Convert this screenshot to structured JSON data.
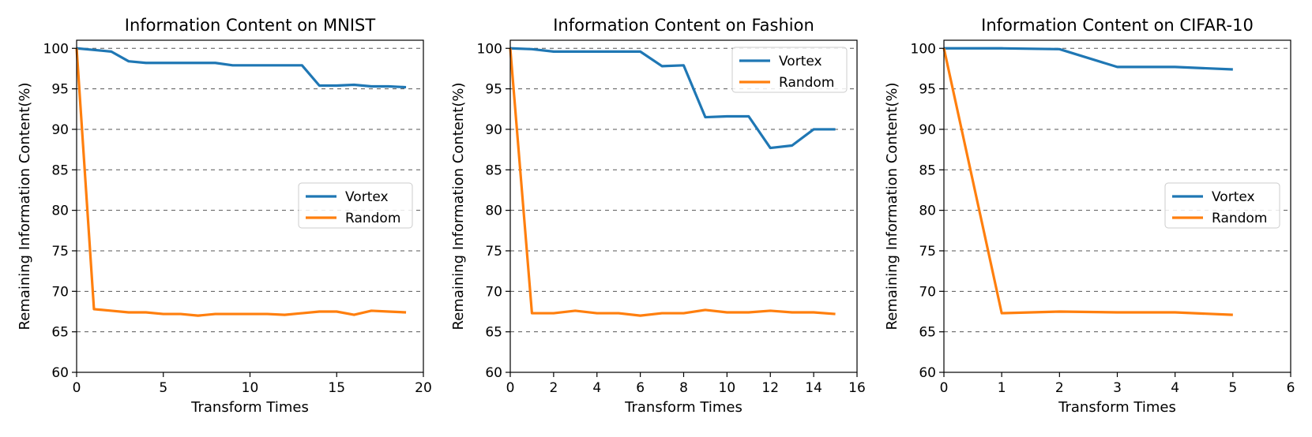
{
  "chart_data": [
    {
      "type": "line",
      "title": "Information Content on MNIST",
      "xlabel": "Transform Times",
      "ylabel": "Remaining Information Content(%)",
      "xlim": [
        0,
        20
      ],
      "ylim": [
        60,
        101
      ],
      "xticks": [
        0,
        5,
        10,
        15,
        20
      ],
      "xtick_labels": [
        "0",
        "5",
        "10",
        "15",
        "20"
      ],
      "yticks": [
        60,
        65,
        70,
        75,
        80,
        85,
        90,
        95,
        100
      ],
      "ytick_labels": [
        "60",
        "65",
        "70",
        "75",
        "80",
        "85",
        "90",
        "95",
        "100"
      ],
      "grid": "horizontal-dashed",
      "legend_position": "center-right",
      "series": [
        {
          "name": "Vortex",
          "color": "#1f77b4",
          "x": [
            0,
            1,
            2,
            3,
            4,
            5,
            6,
            7,
            8,
            9,
            10,
            11,
            12,
            13,
            14,
            15,
            16,
            17,
            18,
            19
          ],
          "y": [
            100,
            99.8,
            99.6,
            98.4,
            98.2,
            98.2,
            98.2,
            98.2,
            98.2,
            97.9,
            97.9,
            97.9,
            97.9,
            97.9,
            95.4,
            95.4,
            95.5,
            95.3,
            95.3,
            95.2
          ]
        },
        {
          "name": "Random",
          "color": "#ff7f0e",
          "x": [
            0,
            1,
            2,
            3,
            4,
            5,
            6,
            7,
            8,
            9,
            10,
            11,
            12,
            13,
            14,
            15,
            16,
            17,
            18,
            19
          ],
          "y": [
            100,
            67.8,
            67.6,
            67.4,
            67.4,
            67.2,
            67.2,
            67.0,
            67.2,
            67.2,
            67.2,
            67.2,
            67.1,
            67.3,
            67.5,
            67.5,
            67.1,
            67.6,
            67.5,
            67.4
          ]
        }
      ]
    },
    {
      "type": "line",
      "title": "Information Content on Fashion",
      "xlabel": "Transform Times",
      "ylabel": "Remaining Information Content(%)",
      "xlim": [
        0,
        16
      ],
      "ylim": [
        60,
        101
      ],
      "xticks": [
        0,
        2,
        4,
        6,
        8,
        10,
        12,
        14,
        16
      ],
      "xtick_labels": [
        "0",
        "2",
        "4",
        "6",
        "8",
        "10",
        "12",
        "14",
        "16"
      ],
      "yticks": [
        60,
        65,
        70,
        75,
        80,
        85,
        90,
        95,
        100
      ],
      "ytick_labels": [
        "60",
        "65",
        "70",
        "75",
        "80",
        "85",
        "90",
        "95",
        "100"
      ],
      "grid": "horizontal-dashed",
      "legend_position": "top-right",
      "series": [
        {
          "name": "Vortex",
          "color": "#1f77b4",
          "x": [
            0,
            1,
            2,
            3,
            4,
            5,
            6,
            7,
            8,
            9,
            10,
            11,
            12,
            13,
            14,
            15
          ],
          "y": [
            100,
            99.9,
            99.6,
            99.6,
            99.6,
            99.6,
            99.6,
            97.8,
            97.9,
            91.5,
            91.6,
            91.6,
            87.7,
            88.0,
            90.0,
            90.0
          ]
        },
        {
          "name": "Random",
          "color": "#ff7f0e",
          "x": [
            0,
            1,
            2,
            3,
            4,
            5,
            6,
            7,
            8,
            9,
            10,
            11,
            12,
            13,
            14,
            15
          ],
          "y": [
            100,
            67.3,
            67.3,
            67.6,
            67.3,
            67.3,
            67.0,
            67.3,
            67.3,
            67.7,
            67.4,
            67.4,
            67.6,
            67.4,
            67.4,
            67.2
          ]
        }
      ]
    },
    {
      "type": "line",
      "title": "Information Content on CIFAR-10",
      "xlabel": "Transform Times",
      "ylabel": "Remaining Information Content(%)",
      "xlim": [
        0,
        6
      ],
      "ylim": [
        60,
        101
      ],
      "xticks": [
        0,
        1,
        2,
        3,
        4,
        5,
        6
      ],
      "xtick_labels": [
        "0",
        "1",
        "2",
        "3",
        "4",
        "5",
        "6"
      ],
      "yticks": [
        60,
        65,
        70,
        75,
        80,
        85,
        90,
        95,
        100
      ],
      "ytick_labels": [
        "60",
        "65",
        "70",
        "75",
        "80",
        "85",
        "90",
        "95",
        "100"
      ],
      "grid": "horizontal-dashed",
      "legend_position": "center-right",
      "series": [
        {
          "name": "Vortex",
          "color": "#1f77b4",
          "x": [
            0,
            1,
            2,
            3,
            4,
            5
          ],
          "y": [
            100,
            100,
            99.9,
            97.7,
            97.7,
            97.4
          ]
        },
        {
          "name": "Random",
          "color": "#ff7f0e",
          "x": [
            0,
            1,
            2,
            3,
            4,
            5
          ],
          "y": [
            100,
            67.3,
            67.5,
            67.4,
            67.4,
            67.1
          ]
        }
      ]
    }
  ]
}
